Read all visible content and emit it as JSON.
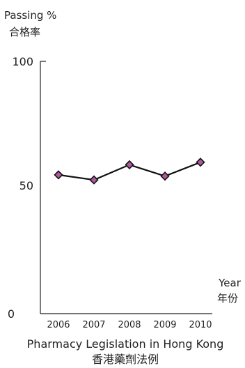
{
  "chart_data": {
    "type": "line",
    "ylabel_en": "Passing %",
    "ylabel_zh": "合格率",
    "xlabel_en": "Year",
    "xlabel_zh": "年份",
    "caption_en": "Pharmacy Legislation in Hong Kong",
    "caption_zh": "香港藥劑法例",
    "x": [
      "2006",
      "2007",
      "2008",
      "2009",
      "2010"
    ],
    "values": [
      55,
      53,
      59,
      54.5,
      60
    ],
    "ylim": [
      0,
      100
    ],
    "yticks": [
      "0",
      "50",
      "100"
    ],
    "grid": false,
    "marker_color": "#b0579e",
    "line_color": "#111111"
  }
}
